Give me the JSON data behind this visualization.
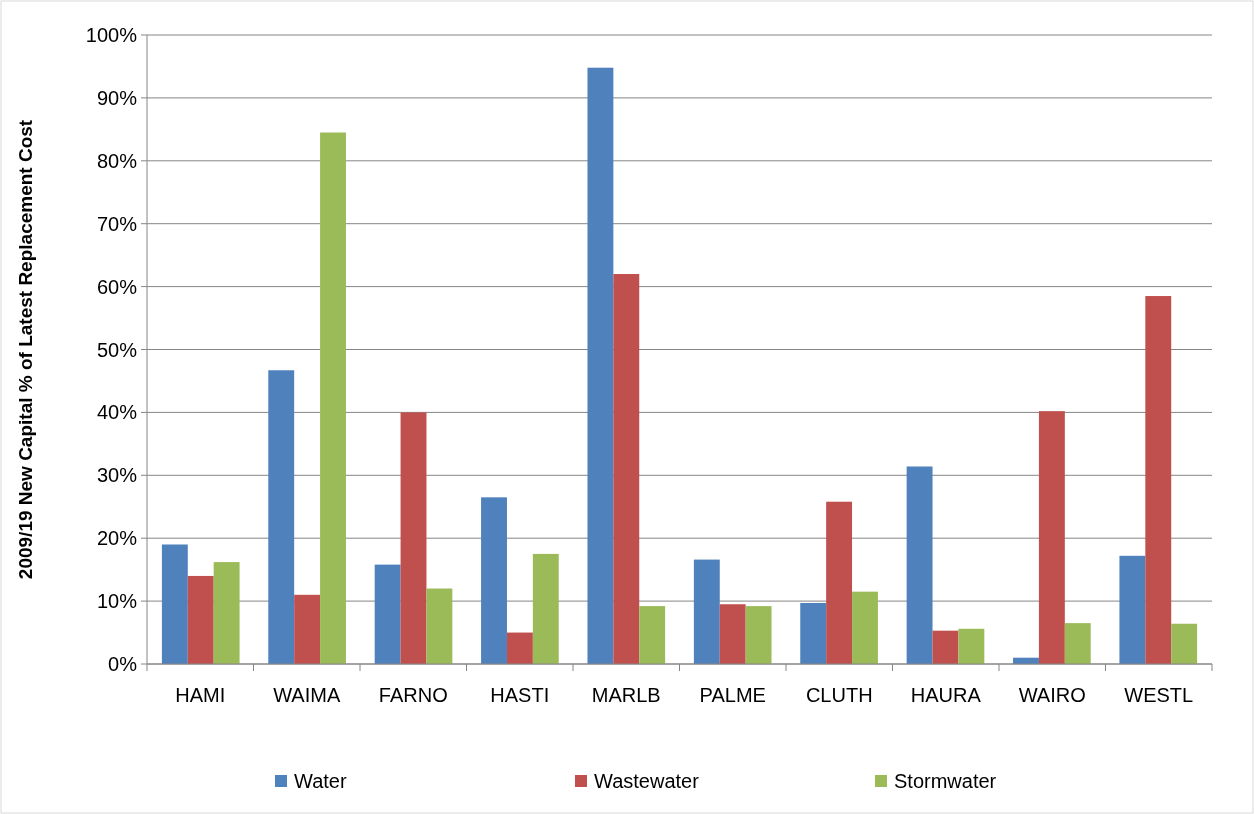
{
  "chart_data": {
    "type": "bar",
    "ylabel": "2009/19 New Capital % of Latest Replacement Cost",
    "categories": [
      "HAMI",
      "WAIMA",
      "FARNO",
      "HASTI",
      "MARLB",
      "PALME",
      "CLUTH",
      "HAURA",
      "WAIRO",
      "WESTL"
    ],
    "series": [
      {
        "name": "Water",
        "color": "#4f81bd",
        "values": [
          19,
          46.7,
          15.8,
          26.5,
          94.8,
          16.6,
          9.7,
          31.4,
          1,
          17.2
        ]
      },
      {
        "name": "Wastewater",
        "color": "#c0504d",
        "values": [
          14,
          11,
          40,
          5,
          62,
          9.5,
          25.8,
          5.3,
          40.2,
          58.5
        ]
      },
      {
        "name": "Stormwater",
        "color": "#9bbb59",
        "values": [
          16.2,
          84.5,
          12,
          17.5,
          9.2,
          9.2,
          11.5,
          5.6,
          6.5,
          6.4
        ]
      }
    ],
    "ylim": [
      0,
      100
    ],
    "yticks": [
      {
        "value": 0,
        "label": "0%"
      },
      {
        "value": 10,
        "label": "10%"
      },
      {
        "value": 20,
        "label": "20%"
      },
      {
        "value": 30,
        "label": "30%"
      },
      {
        "value": 40,
        "label": "40%"
      },
      {
        "value": 50,
        "label": "50%"
      },
      {
        "value": 60,
        "label": "60%"
      },
      {
        "value": 70,
        "label": "70%"
      },
      {
        "value": 80,
        "label": "80%"
      },
      {
        "value": 90,
        "label": "90%"
      },
      {
        "value": 100,
        "label": "100%"
      }
    ],
    "grid": "y",
    "legend": "bottom"
  }
}
